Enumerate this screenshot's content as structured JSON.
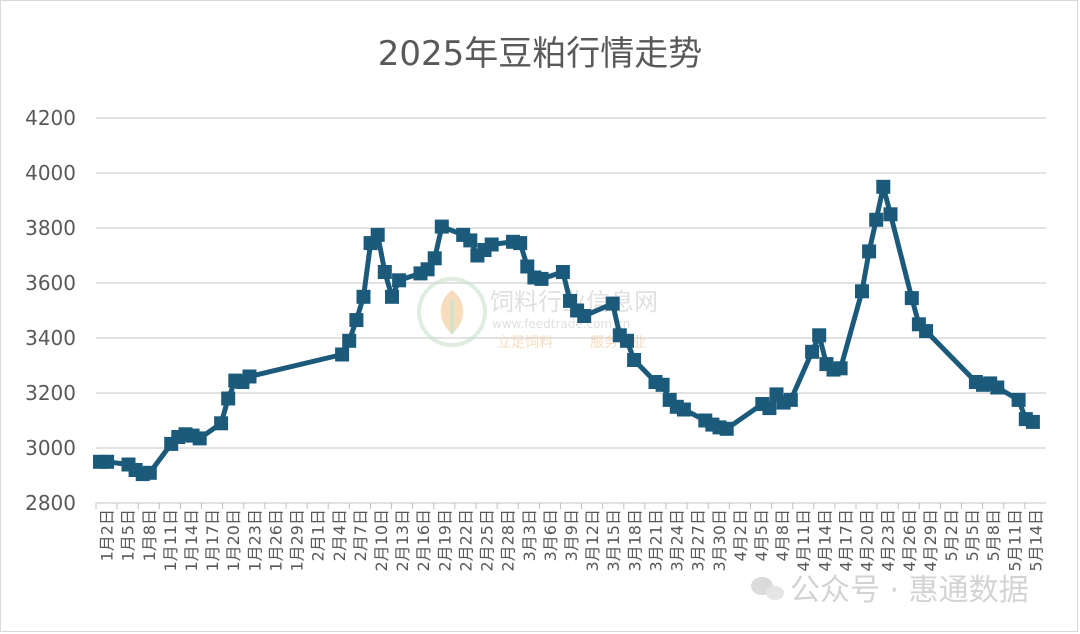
{
  "chart_data": {
    "type": "line",
    "title": "2025年豆粕行情走势",
    "ylim": [
      2800,
      4200
    ],
    "yticks": [
      2800,
      3000,
      3200,
      3400,
      3600,
      3800,
      4000,
      4200
    ],
    "grid": true,
    "legend": "none",
    "line_color": "#1b5a7a",
    "x_tick_labels": [
      "1月2日",
      "1月5日",
      "1月8日",
      "1月11日",
      "1月14日",
      "1月17日",
      "1月20日",
      "1月23日",
      "1月26日",
      "1月29日",
      "2月1日",
      "2月4日",
      "2月7日",
      "2月10日",
      "2月13日",
      "2月16日",
      "2月19日",
      "2月22日",
      "2月25日",
      "2月28日",
      "3月3日",
      "3月6日",
      "3月9日",
      "3月12日",
      "3月15日",
      "3月18日",
      "3月21日",
      "3月24日",
      "3月27日",
      "3月30日",
      "4月2日",
      "4月5日",
      "4月8日",
      "4月11日",
      "4月14日",
      "4月17日",
      "4月20日",
      "4月23日",
      "4月26日",
      "4月29日",
      "5月2日",
      "5月5日",
      "5月8日",
      "5月11日",
      "5月14日"
    ],
    "x_tick_labels_display": [
      "1月2日",
      "1月5日",
      "1月8日",
      "1月11日",
      "1月14日",
      "1月17日",
      "1月20日",
      "1月23日",
      "1月26日",
      "1月29日",
      "2月1日",
      "2月4日",
      "2月7日",
      "2月10日",
      "2月13日",
      "2月16日",
      "2月19日",
      "2月22日",
      "2月25日",
      "2月28日",
      "3月3日",
      "3月6日",
      "3月9日",
      "3月12日",
      "3月15日",
      "3月18日",
      "3月21日",
      "3月24日",
      "3月27日",
      "3月30日",
      "4月2日",
      "4月5日",
      "4月8日",
      "4月11日",
      "4月14日",
      "4月17日",
      "4月20日",
      "4月23日",
      "4月26日",
      "4月29日",
      "5月2日",
      "5月5日",
      "5月8日",
      "5月11日",
      "5月14日"
    ],
    "series": [
      {
        "points": [
          [
            "2025-01-02",
            2950
          ],
          [
            "2025-01-03",
            2950
          ],
          [
            "2025-01-06",
            2940
          ],
          [
            "2025-01-07",
            2920
          ],
          [
            "2025-01-08",
            2905
          ],
          [
            "2025-01-09",
            2910
          ],
          [
            "2025-01-12",
            3015
          ],
          [
            "2025-01-13",
            3040
          ],
          [
            "2025-01-14",
            3050
          ],
          [
            "2025-01-15",
            3045
          ],
          [
            "2025-01-16",
            3035
          ],
          [
            "2025-01-19",
            3090
          ],
          [
            "2025-01-20",
            3180
          ],
          [
            "2025-01-21",
            3245
          ],
          [
            "2025-01-22",
            3240
          ],
          [
            "2025-01-23",
            3260
          ],
          [
            "2025-02-05",
            3340
          ],
          [
            "2025-02-06",
            3390
          ],
          [
            "2025-02-07",
            3465
          ],
          [
            "2025-02-08",
            3550
          ],
          [
            "2025-02-09",
            3745
          ],
          [
            "2025-02-10",
            3775
          ],
          [
            "2025-02-11",
            3640
          ],
          [
            "2025-02-12",
            3550
          ],
          [
            "2025-02-13",
            3610
          ],
          [
            "2025-02-16",
            3635
          ],
          [
            "2025-02-17",
            3650
          ],
          [
            "2025-02-18",
            3690
          ],
          [
            "2025-02-19",
            3805
          ],
          [
            "2025-02-22",
            3775
          ],
          [
            "2025-02-23",
            3755
          ],
          [
            "2025-02-24",
            3700
          ],
          [
            "2025-02-25",
            3720
          ],
          [
            "2025-02-26",
            3740
          ],
          [
            "2025-03-01",
            3750
          ],
          [
            "2025-03-02",
            3745
          ],
          [
            "2025-03-03",
            3660
          ],
          [
            "2025-03-04",
            3620
          ],
          [
            "2025-03-05",
            3615
          ],
          [
            "2025-03-08",
            3640
          ],
          [
            "2025-03-09",
            3535
          ],
          [
            "2025-03-10",
            3500
          ],
          [
            "2025-03-11",
            3480
          ],
          [
            "2025-03-15",
            3525
          ],
          [
            "2025-03-16",
            3410
          ],
          [
            "2025-03-17",
            3390
          ],
          [
            "2025-03-18",
            3320
          ],
          [
            "2025-03-21",
            3240
          ],
          [
            "2025-03-22",
            3230
          ],
          [
            "2025-03-23",
            3175
          ],
          [
            "2025-03-24",
            3150
          ],
          [
            "2025-03-25",
            3140
          ],
          [
            "2025-03-28",
            3100
          ],
          [
            "2025-03-29",
            3085
          ],
          [
            "2025-03-30",
            3075
          ],
          [
            "2025-03-31",
            3070
          ],
          [
            "2025-04-05",
            3160
          ],
          [
            "2025-04-06",
            3145
          ],
          [
            "2025-04-07",
            3195
          ],
          [
            "2025-04-08",
            3165
          ],
          [
            "2025-04-09",
            3175
          ],
          [
            "2025-04-12",
            3350
          ],
          [
            "2025-04-13",
            3410
          ],
          [
            "2025-04-14",
            3305
          ],
          [
            "2025-04-15",
            3285
          ],
          [
            "2025-04-16",
            3290
          ],
          [
            "2025-04-19",
            3570
          ],
          [
            "2025-04-20",
            3715
          ],
          [
            "2025-04-21",
            3830
          ],
          [
            "2025-04-22",
            3950
          ],
          [
            "2025-04-23",
            3850
          ],
          [
            "2025-04-26",
            3545
          ],
          [
            "2025-04-27",
            3450
          ],
          [
            "2025-04-28",
            3425
          ],
          [
            "2025-05-05",
            3240
          ],
          [
            "2025-05-06",
            3230
          ],
          [
            "2025-05-07",
            3235
          ],
          [
            "2025-05-08",
            3220
          ],
          [
            "2025-05-11",
            3175
          ],
          [
            "2025-05-12",
            3105
          ],
          [
            "2025-05-13",
            3095
          ]
        ]
      }
    ]
  },
  "watermark": {
    "site_cn": "饲料行业信息网",
    "site_url": "www.feedtrade.com.cn",
    "slogan_left": "立足饲料",
    "slogan_right": "服务行业",
    "wechat": "公众号 · 惠通数据"
  }
}
